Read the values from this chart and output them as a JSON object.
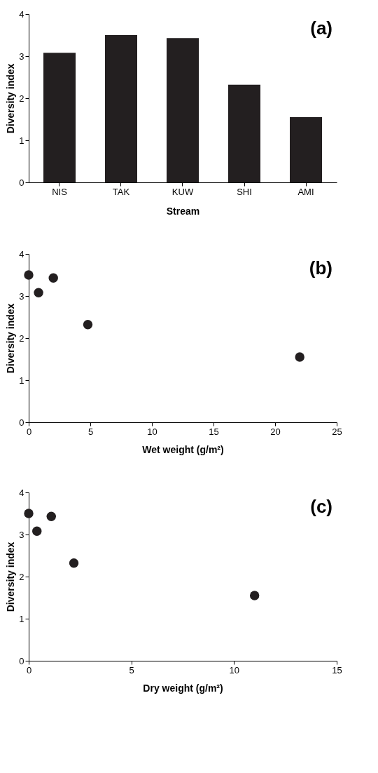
{
  "chart_data": [
    {
      "type": "bar",
      "categories": [
        "NIS",
        "TAK",
        "KUW",
        "SHI",
        "AMI"
      ],
      "values": [
        3.08,
        3.5,
        3.43,
        2.32,
        1.55
      ],
      "color": "#231f20",
      "xlabel": "Stream",
      "ylabel": "Diversity index",
      "ylim": [
        0,
        4
      ],
      "yticks": [
        0,
        1,
        2,
        3,
        4
      ],
      "grid": false,
      "annotations": [
        "(a)"
      ]
    },
    {
      "type": "scatter",
      "x": [
        0,
        0.8,
        2,
        4.8,
        22
      ],
      "values": [
        3.5,
        3.08,
        3.43,
        2.32,
        1.55
      ],
      "color": "#231f20",
      "marker": "circle",
      "xlabel": "Wet weight (g/m²)",
      "ylabel": "Diversity index",
      "xlim": [
        0,
        25
      ],
      "xticks": [
        0,
        5,
        10,
        15,
        20,
        25
      ],
      "ylim": [
        0,
        4
      ],
      "yticks": [
        0,
        1,
        2,
        3,
        4
      ],
      "grid": false,
      "annotations": [
        "(b)"
      ]
    },
    {
      "type": "scatter",
      "x": [
        0,
        0.4,
        1.1,
        2.2,
        11
      ],
      "values": [
        3.5,
        3.08,
        3.43,
        2.32,
        1.55
      ],
      "color": "#231f20",
      "marker": "circle",
      "xlabel": "Dry weight (g/m²)",
      "ylabel": "Diversity index",
      "xlim": [
        0,
        15
      ],
      "xticks": [
        0,
        5,
        10,
        15
      ],
      "ylim": [
        0,
        4
      ],
      "yticks": [
        0,
        1,
        2,
        3,
        4
      ],
      "grid": false,
      "annotations": [
        "(c)"
      ]
    }
  ]
}
